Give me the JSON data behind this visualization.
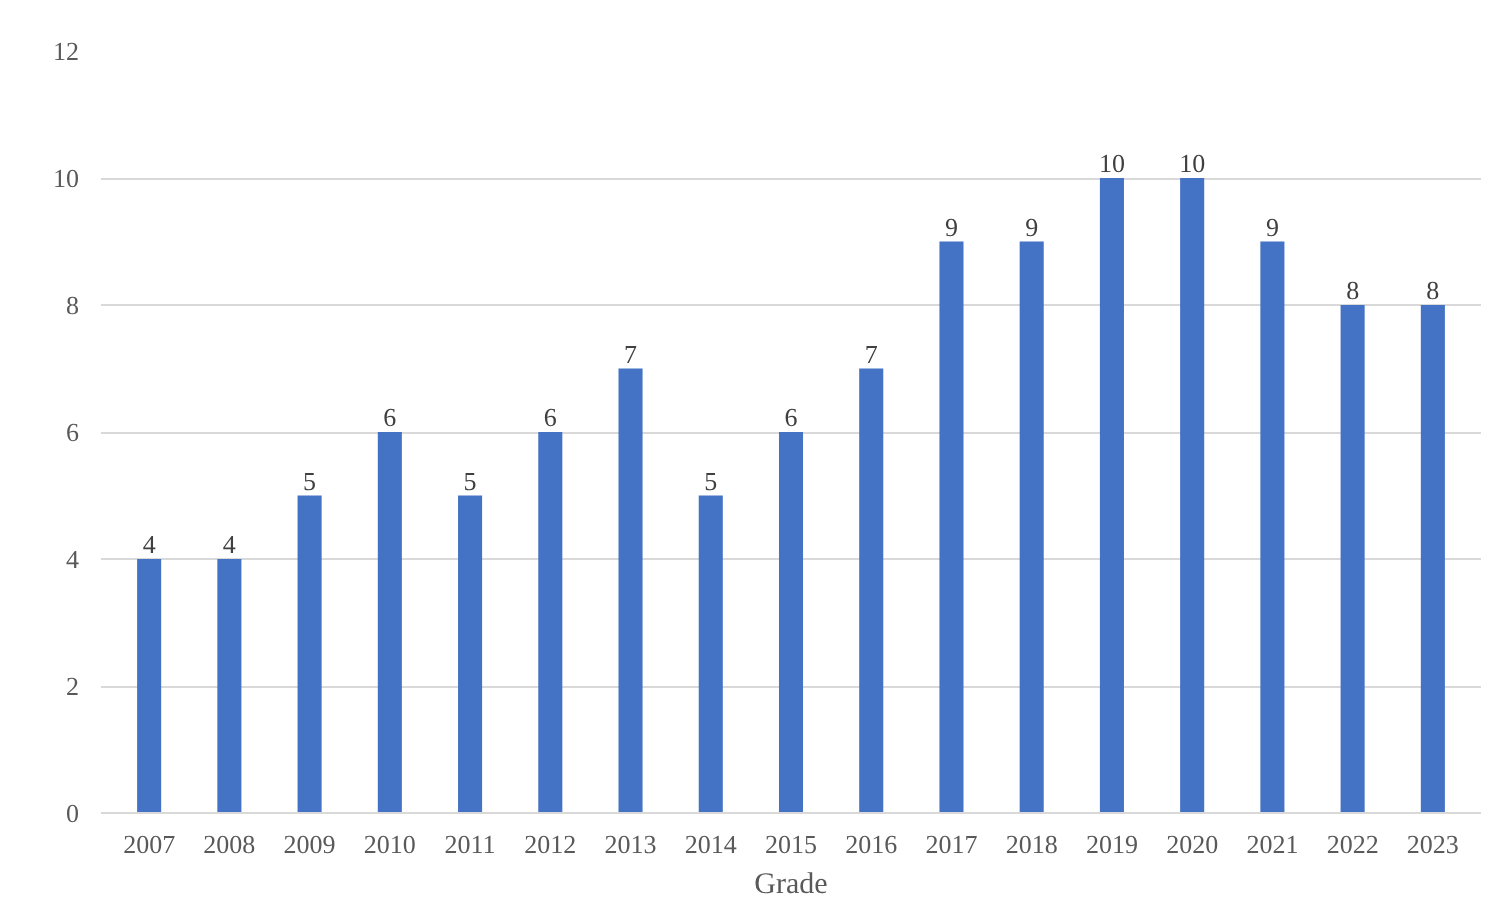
{
  "chart_data": {
    "type": "bar",
    "xlabel": "Grade",
    "categories": [
      "2007",
      "2008",
      "2009",
      "2010",
      "2011",
      "2012",
      "2013",
      "2014",
      "2015",
      "2016",
      "2017",
      "2018",
      "2019",
      "2020",
      "2021",
      "2022",
      "2023"
    ],
    "values": [
      4,
      4,
      5,
      6,
      5,
      6,
      7,
      5,
      6,
      7,
      9,
      9,
      10,
      10,
      9,
      8,
      8
    ],
    "color": "#4472c4",
    "ylim": [
      0,
      12
    ],
    "yticks": [
      0,
      2,
      4,
      6,
      8,
      10,
      12
    ],
    "grid": "y",
    "data_labels": true
  }
}
